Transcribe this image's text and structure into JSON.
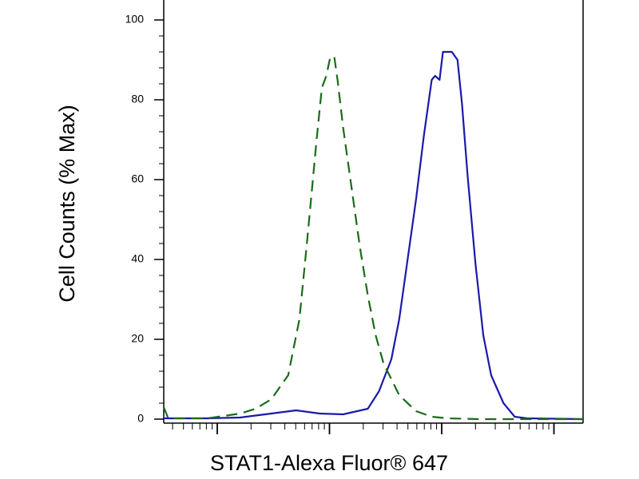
{
  "chart_data": {
    "type": "line",
    "x_label": "STAT1-Alexa Fluor® 647",
    "y_label": "Cell Counts (% Max)",
    "xlim": [
      0.52,
      4.26
    ],
    "ylim": [
      -1,
      105
    ],
    "yticks": [
      0,
      20,
      40,
      60,
      80,
      100
    ],
    "series": [
      {
        "color": "#1a1aaa",
        "dashed": false,
        "x": [
          0.52,
          0.91,
          1.2,
          1.48,
          1.7,
          1.91,
          2.12,
          2.34,
          2.44,
          2.55,
          2.62,
          2.69,
          2.77,
          2.84,
          2.91,
          2.94,
          2.98,
          3.01,
          3.09,
          3.14,
          3.18,
          3.23,
          3.3,
          3.37,
          3.44,
          3.55,
          3.65,
          3.76,
          4.26
        ],
        "values": [
          0.2,
          0.2,
          0.4,
          1.4,
          2.2,
          1.4,
          1.2,
          2.6,
          7,
          15,
          25,
          39,
          55,
          71,
          85,
          86,
          85,
          92,
          92,
          90,
          79,
          61,
          39,
          21,
          11,
          4,
          0.6,
          0.2,
          0
        ]
      },
      {
        "color": "#1a6b1a",
        "dashed": true,
        "x": [
          0.52,
          0.56,
          0.91,
          1.06,
          1.2,
          1.34,
          1.48,
          1.63,
          1.73,
          1.8,
          1.88,
          1.93,
          1.97,
          2.0,
          2.04,
          2.07,
          2.12,
          2.2,
          2.27,
          2.34,
          2.41,
          2.48,
          2.55,
          2.62,
          2.77,
          2.91,
          3.05,
          3.33,
          4.26
        ],
        "values": [
          3,
          0.2,
          0.2,
          0.8,
          1.4,
          2.6,
          5,
          11,
          25,
          45,
          69,
          83,
          86,
          90,
          91,
          85,
          73,
          57,
          43,
          31,
          21,
          14,
          10,
          6,
          2,
          0.6,
          0.2,
          0,
          0
        ]
      }
    ]
  }
}
